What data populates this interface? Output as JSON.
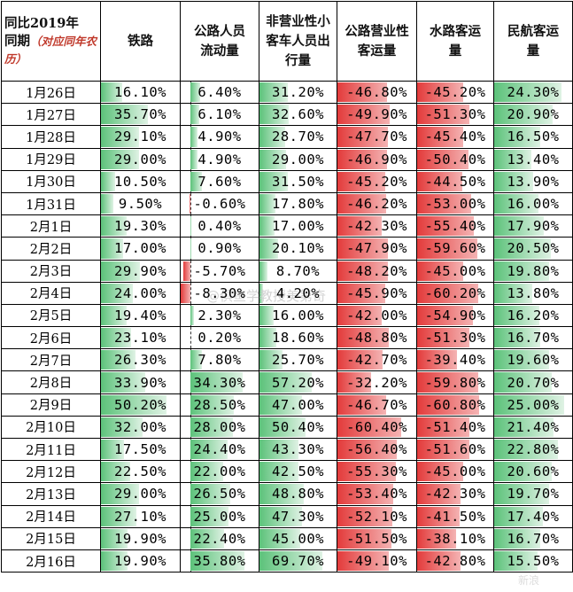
{
  "headers": {
    "col0_line1": "同比2019年",
    "col0_line2": "同期",
    "col0_note": "（对应同年农历）",
    "rail": "铁路",
    "road_people": "公路人员流动量",
    "private_car": "非营业性小客车人员出行量",
    "road_commercial": "公路营业性客运量",
    "water": "水路客运量",
    "air": "民航客运量"
  },
  "rows": [
    {
      "date": "1月26日",
      "rail": "16.10%",
      "road_people": "6.40%",
      "private_car": "31.20%",
      "road_commercial": "-46.80%",
      "water": "-45.20%",
      "air": "24.30%"
    },
    {
      "date": "1月27日",
      "rail": "35.70%",
      "road_people": "6.10%",
      "private_car": "32.60%",
      "road_commercial": "-49.90%",
      "water": "-51.30%",
      "air": "20.90%"
    },
    {
      "date": "1月28日",
      "rail": "29.10%",
      "road_people": "4.90%",
      "private_car": "28.70%",
      "road_commercial": "-47.70%",
      "water": "-45.40%",
      "air": "16.50%"
    },
    {
      "date": "1月29日",
      "rail": "29.00%",
      "road_people": "4.90%",
      "private_car": "29.00%",
      "road_commercial": "-46.90%",
      "water": "-50.40%",
      "air": "13.40%"
    },
    {
      "date": "1月30日",
      "rail": "10.50%",
      "road_people": "7.60%",
      "private_car": "31.50%",
      "road_commercial": "-45.20%",
      "water": "-44.50%",
      "air": "13.90%"
    },
    {
      "date": "1月31日",
      "rail": "9.50%",
      "road_people": "-0.60%",
      "private_car": "17.80%",
      "road_commercial": "-46.20%",
      "water": "-53.00%",
      "air": "16.00%"
    },
    {
      "date": "2月1日",
      "rail": "19.30%",
      "road_people": "0.40%",
      "private_car": "17.00%",
      "road_commercial": "-42.30%",
      "water": "-55.40%",
      "air": "17.90%"
    },
    {
      "date": "2月2日",
      "rail": "17.00%",
      "road_people": "0.90%",
      "private_car": "20.10%",
      "road_commercial": "-47.90%",
      "water": "-59.60%",
      "air": "20.50%"
    },
    {
      "date": "2月3日",
      "rail": "29.90%",
      "road_people": "-5.70%",
      "private_car": "8.70%",
      "road_commercial": "-48.20%",
      "water": "-45.00%",
      "air": "19.80%"
    },
    {
      "date": "2月4日",
      "rail": "24.00%",
      "road_people": "-8.30%",
      "private_car": "4.20%",
      "road_commercial": "-45.90%",
      "water": "-60.20%",
      "air": "13.80%"
    },
    {
      "date": "2月5日",
      "rail": "19.40%",
      "road_people": "2.30%",
      "private_car": "16.00%",
      "road_commercial": "-42.00%",
      "water": "-54.90%",
      "air": "16.20%"
    },
    {
      "date": "2月6日",
      "rail": "23.10%",
      "road_people": "0.20%",
      "private_car": "18.60%",
      "road_commercial": "-48.80%",
      "water": "-51.30%",
      "air": "16.70%"
    },
    {
      "date": "2月7日",
      "rail": "26.30%",
      "road_people": "7.80%",
      "private_car": "25.70%",
      "road_commercial": "-42.70%",
      "water": "-39.40%",
      "air": "19.60%"
    },
    {
      "date": "2月8日",
      "rail": "33.90%",
      "road_people": "34.30%",
      "private_car": "57.20%",
      "road_commercial": "-32.20%",
      "water": "-59.80%",
      "air": "20.70%"
    },
    {
      "date": "2月9日",
      "rail": "50.20%",
      "road_people": "28.50%",
      "private_car": "47.00%",
      "road_commercial": "-46.70%",
      "water": "-60.80%",
      "air": "25.00%"
    },
    {
      "date": "2月10日",
      "rail": "32.00%",
      "road_people": "28.00%",
      "private_car": "50.40%",
      "road_commercial": "-60.40%",
      "water": "-51.40%",
      "air": "21.40%"
    },
    {
      "date": "2月11日",
      "rail": "17.50%",
      "road_people": "24.40%",
      "private_car": "43.30%",
      "road_commercial": "-56.40%",
      "water": "-51.60%",
      "air": "22.80%"
    },
    {
      "date": "2月12日",
      "rail": "22.50%",
      "road_people": "22.00%",
      "private_car": "42.50%",
      "road_commercial": "-55.30%",
      "water": "-45.00%",
      "air": "20.60%"
    },
    {
      "date": "2月13日",
      "rail": "29.00%",
      "road_people": "26.50%",
      "private_car": "48.80%",
      "road_commercial": "-53.40%",
      "water": "-42.30%",
      "air": "19.70%"
    },
    {
      "date": "2月14日",
      "rail": "27.10%",
      "road_people": "25.00%",
      "private_car": "47.30%",
      "road_commercial": "-52.10%",
      "water": "-41.50%",
      "air": "17.40%"
    },
    {
      "date": "2月15日",
      "rail": "19.90%",
      "road_people": "22.40%",
      "private_car": "45.00%",
      "road_commercial": "-51.50%",
      "water": "-38.10%",
      "air": "16.70%"
    },
    {
      "date": "2月16日",
      "rail": "19.90%",
      "road_people": "35.80%",
      "private_car": "69.70%",
      "road_commercial": "-49.10%",
      "water": "-42.80%",
      "air": "15.50%"
    }
  ],
  "watermark": "@俱鱼学教授美第奇",
  "corner_mark": "新浪"
}
